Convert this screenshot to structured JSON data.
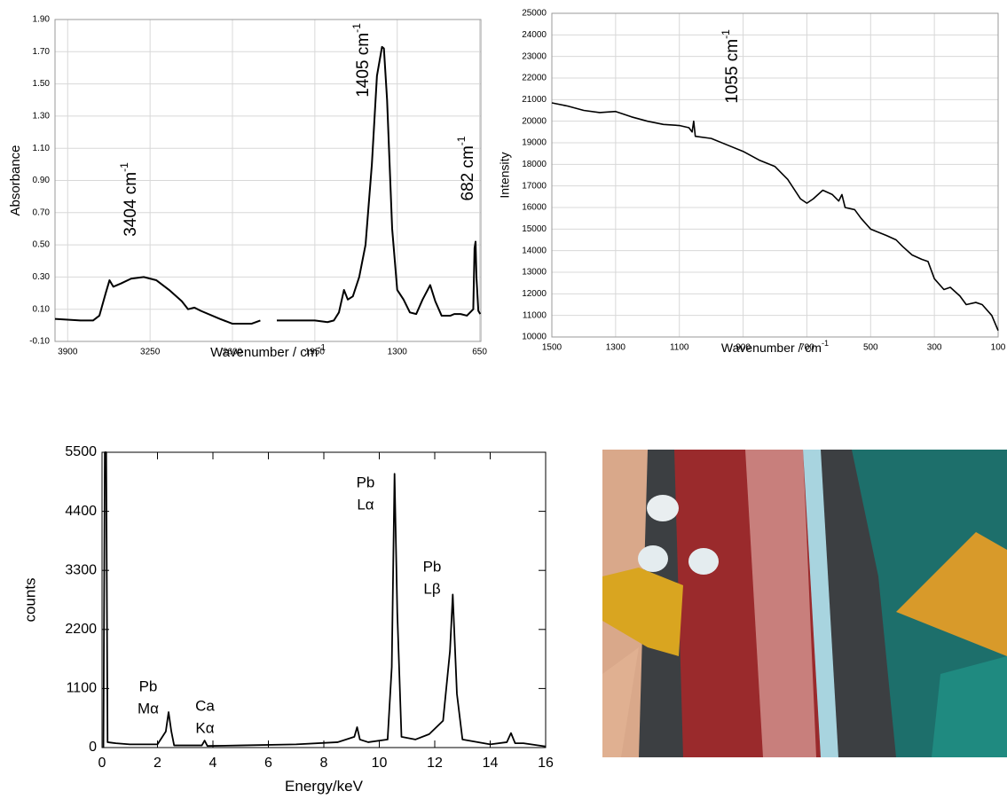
{
  "chart_data": [
    {
      "type": "line",
      "x_label": "Wavenumber / cm",
      "x_label_sup": "-1",
      "y_label": "Absorbance",
      "xlim": [
        4000,
        640
      ],
      "xticks": [
        3900,
        3250,
        2600,
        1950,
        1300,
        650
      ],
      "ylim": [
        -0.1,
        1.9
      ],
      "yticks": [
        {
          "value": -0.1,
          "label": "-0.10"
        },
        {
          "value": 0.1,
          "label": "0.10"
        },
        {
          "value": 0.3,
          "label": "0.30"
        },
        {
          "value": 0.5,
          "label": "0.50"
        },
        {
          "value": 0.7,
          "label": "0.70"
        },
        {
          "value": 0.9,
          "label": "0.90"
        },
        {
          "value": 1.1,
          "label": "1.10"
        },
        {
          "value": 1.3,
          "label": "1.30"
        },
        {
          "value": 1.5,
          "label": "1.50"
        },
        {
          "value": 1.7,
          "label": "1.70"
        },
        {
          "value": 1.9,
          "label": "1.90"
        }
      ],
      "grid": true,
      "color": "#000000",
      "x": [
        4000,
        3800,
        3700,
        3650,
        3600,
        3570,
        3540,
        3480,
        3400,
        3300,
        3200,
        3100,
        3000,
        2950,
        2900,
        2850,
        2700,
        2600,
        2450,
        2380,
        2300,
        2250,
        2100,
        1950,
        1850,
        1800,
        1760,
        1720,
        1690,
        1650,
        1600,
        1550,
        1500,
        1460,
        1420,
        1405,
        1380,
        1340,
        1300,
        1250,
        1200,
        1150,
        1100,
        1060,
        1040,
        1000,
        950,
        880,
        850,
        800,
        750,
        700,
        690,
        682,
        675,
        660,
        645
      ],
      "values": [
        0.04,
        0.03,
        0.03,
        0.06,
        0.2,
        0.28,
        0.24,
        0.26,
        0.29,
        0.3,
        0.28,
        0.22,
        0.15,
        0.1,
        0.11,
        0.09,
        0.04,
        0.01,
        0.01,
        0.03,
        null,
        0.03,
        0.03,
        0.03,
        0.02,
        0.03,
        0.08,
        0.22,
        0.16,
        0.18,
        0.3,
        0.5,
        1.0,
        1.55,
        1.73,
        1.72,
        1.4,
        0.6,
        0.22,
        0.16,
        0.08,
        0.07,
        0.16,
        0.22,
        0.25,
        0.15,
        0.06,
        0.06,
        0.07,
        0.07,
        0.06,
        0.1,
        0.48,
        0.52,
        0.3,
        0.09,
        0.07
      ],
      "annotations": [
        {
          "text": "3404 cm",
          "sup": "-1"
        },
        {
          "text": "1405 cm",
          "sup": "-1"
        },
        {
          "text": "682 cm",
          "sup": "-1"
        }
      ]
    },
    {
      "type": "line",
      "x_label": "Wavenumber / cm",
      "x_label_sup": "-1",
      "y_label": "Intensity",
      "xlim": [
        1500,
        100
      ],
      "xticks": [
        1500,
        1300,
        1100,
        900,
        700,
        500,
        300,
        100
      ],
      "ylim": [
        10000,
        25000
      ],
      "yticks": [
        10000,
        11000,
        12000,
        13000,
        14000,
        15000,
        16000,
        17000,
        18000,
        19000,
        20000,
        21000,
        22000,
        23000,
        24000,
        25000
      ],
      "grid": true,
      "color": "#000000",
      "x": [
        1500,
        1450,
        1400,
        1350,
        1300,
        1250,
        1200,
        1150,
        1100,
        1070,
        1060,
        1055,
        1050,
        1000,
        950,
        900,
        850,
        800,
        760,
        720,
        700,
        680,
        650,
        620,
        600,
        590,
        580,
        550,
        530,
        500,
        450,
        420,
        400,
        370,
        340,
        320,
        300,
        270,
        250,
        220,
        200,
        170,
        150,
        120,
        100
      ],
      "values": [
        20850,
        20700,
        20500,
        20400,
        20450,
        20200,
        20000,
        19850,
        19800,
        19700,
        19500,
        20000,
        19300,
        19200,
        18900,
        18600,
        18200,
        17900,
        17300,
        16400,
        16200,
        16400,
        16800,
        16600,
        16300,
        16600,
        16000,
        15900,
        15500,
        15000,
        14700,
        14500,
        14200,
        13800,
        13600,
        13500,
        12700,
        12200,
        12300,
        11900,
        11500,
        11600,
        11500,
        11000,
        10300
      ],
      "annotations": [
        {
          "text": "1055 cm",
          "sup": "-1"
        }
      ]
    },
    {
      "type": "line",
      "x_label": "Energy/keV",
      "y_label": "counts",
      "xlim": [
        0,
        16
      ],
      "xticks": [
        0,
        2,
        4,
        6,
        8,
        10,
        12,
        14,
        16
      ],
      "ylim": [
        0,
        5500
      ],
      "yticks": [
        0,
        1100,
        2200,
        3300,
        4400,
        5500
      ],
      "grid": false,
      "color": "#000000",
      "x": [
        0.05,
        0.1,
        0.15,
        0.2,
        0.5,
        1,
        2,
        2.3,
        2.4,
        2.5,
        2.6,
        3.6,
        3.7,
        3.8,
        5,
        7,
        8.5,
        9.1,
        9.2,
        9.3,
        9.6,
        10.3,
        10.45,
        10.55,
        10.65,
        10.8,
        11.3,
        11.8,
        12.3,
        12.55,
        12.65,
        12.8,
        13,
        14,
        14.6,
        14.75,
        14.9,
        15.2,
        16
      ],
      "values": [
        0,
        5500,
        5500,
        100,
        80,
        60,
        60,
        300,
        660,
        300,
        40,
        40,
        130,
        30,
        40,
        60,
        100,
        200,
        380,
        150,
        100,
        150,
        1500,
        5100,
        2500,
        200,
        150,
        250,
        500,
        1800,
        2850,
        1000,
        150,
        60,
        100,
        270,
        80,
        80,
        20
      ],
      "annotations": [
        {
          "lines": [
            "Pb",
            "Mα"
          ]
        },
        {
          "lines": [
            "Ca",
            "Kα"
          ]
        },
        {
          "lines": [
            "Pb",
            "Lα"
          ]
        },
        {
          "lines": [
            "Pb",
            "Lβ"
          ]
        }
      ]
    }
  ]
}
